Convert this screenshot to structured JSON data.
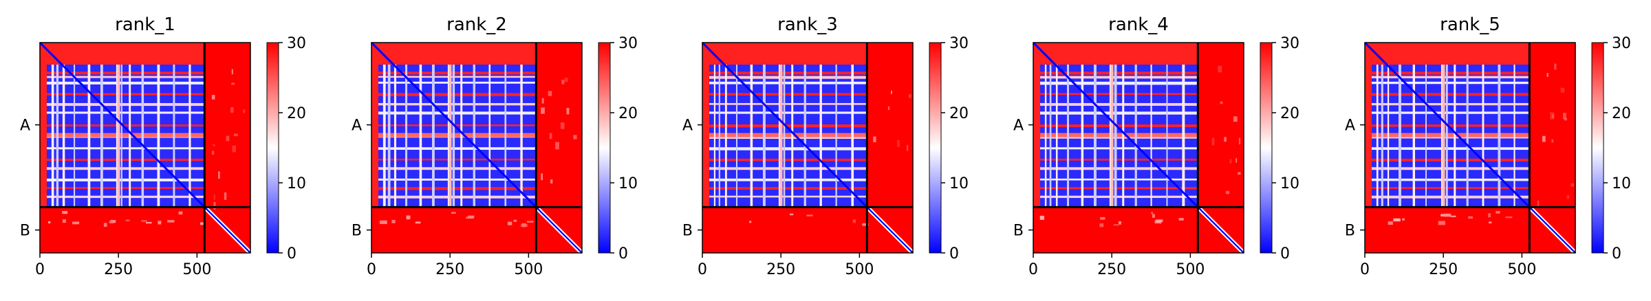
{
  "chart_data": [
    {
      "type": "heatmap",
      "title": "rank_1",
      "x_ticks": [
        "0",
        "250",
        "500"
      ],
      "x_tick_values": [
        0,
        250,
        500
      ],
      "y_ticks": [
        "A",
        "B"
      ],
      "chains": [
        {
          "name": "A",
          "start": 0,
          "end": 524
        },
        {
          "name": "B",
          "start": 524,
          "end": 670
        }
      ],
      "xlim": [
        0,
        670
      ],
      "colorbar": {
        "range": [
          0,
          30
        ],
        "ticks": [
          "0",
          "10",
          "20",
          "30"
        ],
        "tick_values": [
          0,
          10,
          20,
          30
        ],
        "colormap": "bwr"
      },
      "chain_B_interchain_speckle": 0.35
    },
    {
      "type": "heatmap",
      "title": "rank_2",
      "x_ticks": [
        "0",
        "250",
        "500"
      ],
      "x_tick_values": [
        0,
        250,
        500
      ],
      "y_ticks": [
        "A",
        "B"
      ],
      "chains": [
        {
          "name": "A",
          "start": 0,
          "end": 524
        },
        {
          "name": "B",
          "start": 524,
          "end": 670
        }
      ],
      "xlim": [
        0,
        670
      ],
      "colorbar": {
        "range": [
          0,
          30
        ],
        "ticks": [
          "0",
          "10",
          "20",
          "30"
        ],
        "tick_values": [
          0,
          10,
          20,
          30
        ],
        "colormap": "bwr"
      },
      "chain_B_interchain_speckle": 0.3
    },
    {
      "type": "heatmap",
      "title": "rank_3",
      "x_ticks": [
        "0",
        "250",
        "500"
      ],
      "x_tick_values": [
        0,
        250,
        500
      ],
      "y_ticks": [
        "A",
        "B"
      ],
      "chains": [
        {
          "name": "A",
          "start": 0,
          "end": 524
        },
        {
          "name": "B",
          "start": 524,
          "end": 670
        }
      ],
      "xlim": [
        0,
        670
      ],
      "colorbar": {
        "range": [
          0,
          30
        ],
        "ticks": [
          "0",
          "10",
          "20",
          "30"
        ],
        "tick_values": [
          0,
          10,
          20,
          30
        ],
        "colormap": "bwr"
      },
      "chain_B_interchain_speckle": 0.15
    },
    {
      "type": "heatmap",
      "title": "rank_4",
      "x_ticks": [
        "0",
        "250",
        "500"
      ],
      "x_tick_values": [
        0,
        250,
        500
      ],
      "y_ticks": [
        "A",
        "B"
      ],
      "chains": [
        {
          "name": "A",
          "start": 0,
          "end": 524
        },
        {
          "name": "B",
          "start": 524,
          "end": 670
        }
      ],
      "xlim": [
        0,
        670
      ],
      "colorbar": {
        "range": [
          0,
          30
        ],
        "ticks": [
          "0",
          "10",
          "20",
          "30"
        ],
        "tick_values": [
          0,
          10,
          20,
          30
        ],
        "colormap": "bwr"
      },
      "chain_B_interchain_speckle": 0.25
    },
    {
      "type": "heatmap",
      "title": "rank_5",
      "x_ticks": [
        "0",
        "250",
        "500"
      ],
      "x_tick_values": [
        0,
        250,
        500
      ],
      "y_ticks": [
        "A",
        "B"
      ],
      "chains": [
        {
          "name": "A",
          "start": 0,
          "end": 524
        },
        {
          "name": "B",
          "start": 524,
          "end": 670
        }
      ],
      "xlim": [
        0,
        670
      ],
      "colorbar": {
        "range": [
          0,
          30
        ],
        "ticks": [
          "0",
          "10",
          "20",
          "30"
        ],
        "tick_values": [
          0,
          10,
          20,
          30
        ],
        "colormap": "bwr"
      },
      "chain_B_interchain_speckle": 0.3
    }
  ]
}
